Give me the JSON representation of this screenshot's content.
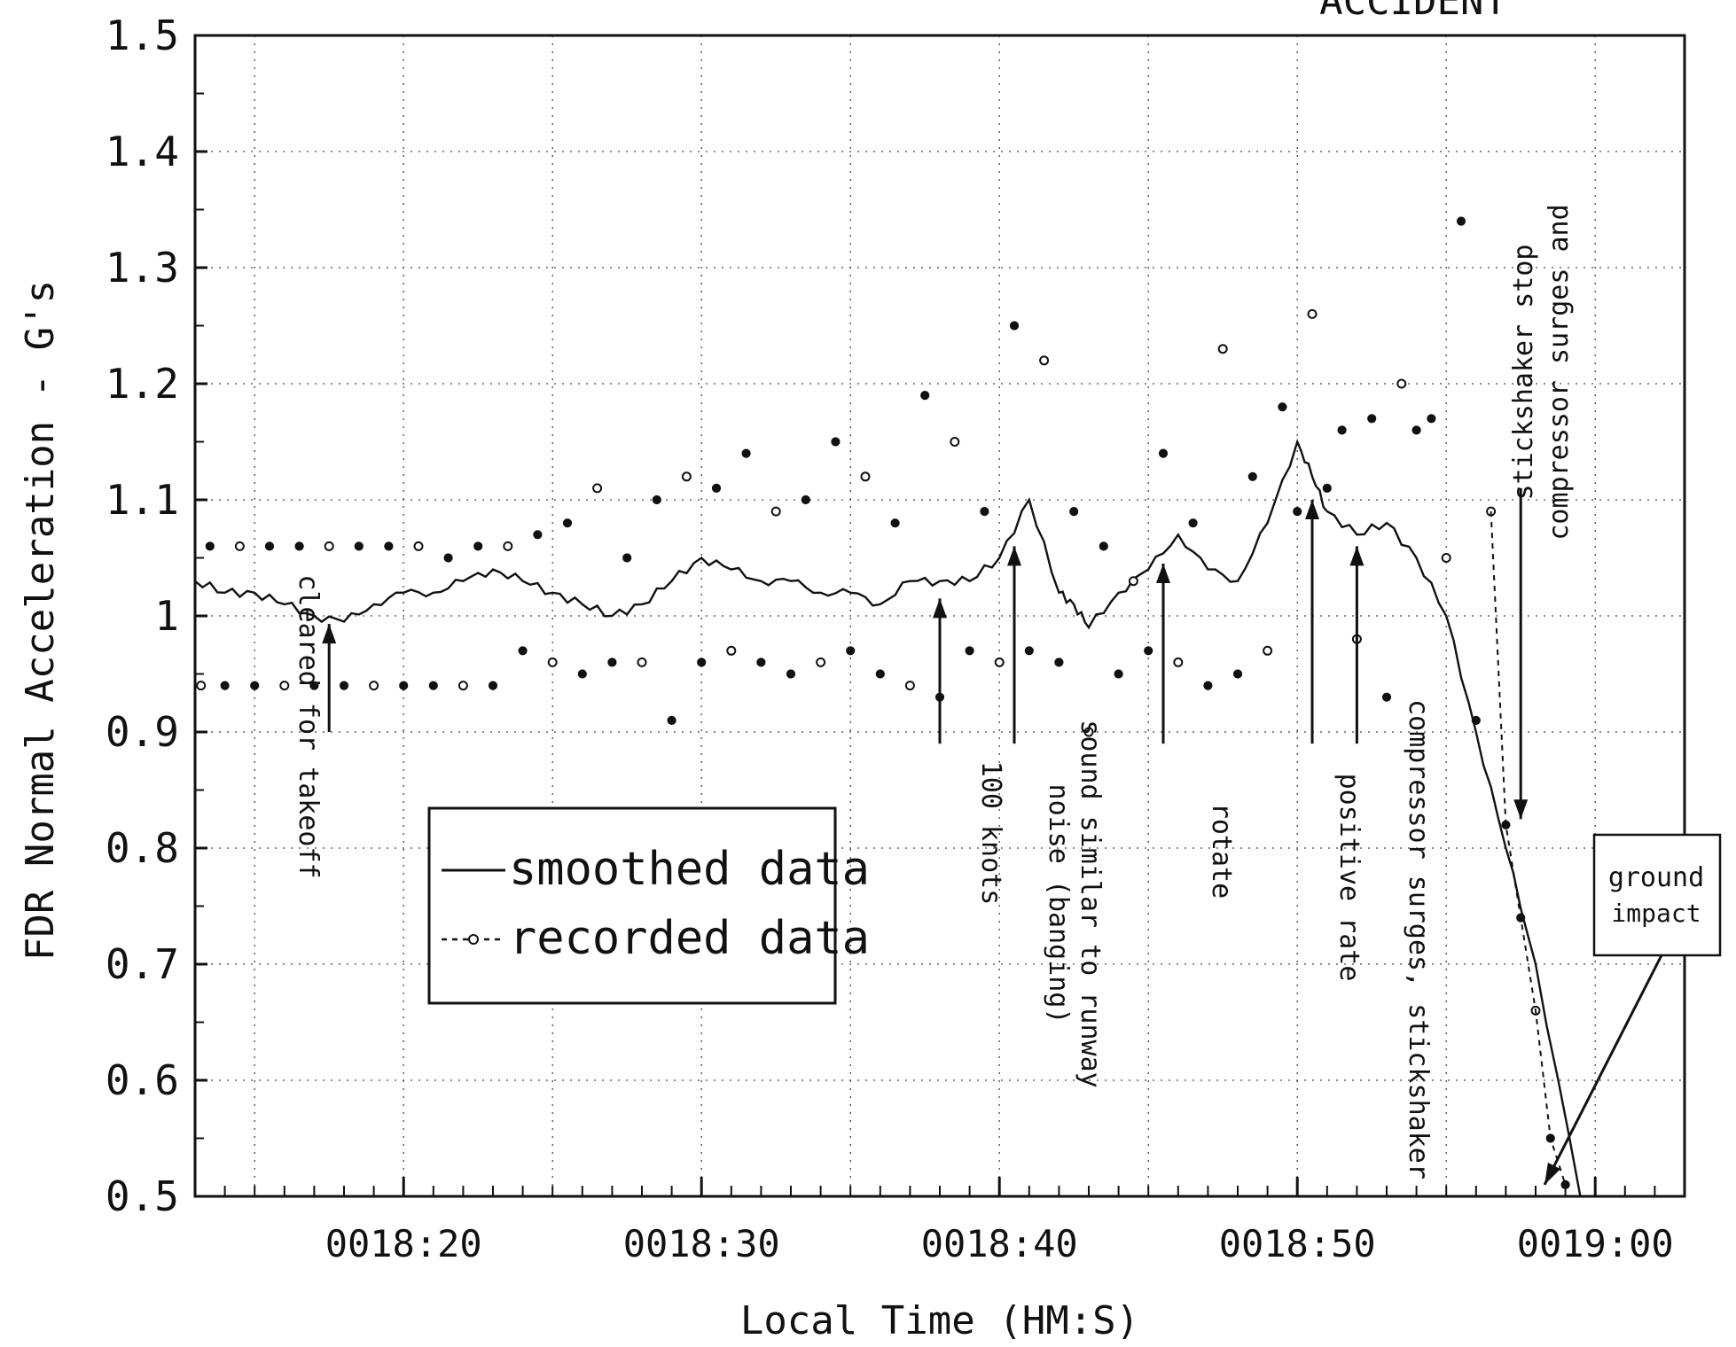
{
  "chart_data": {
    "type": "scatter",
    "partial_title": "ACCIDENT",
    "xlabel": "Local Time (HM:S)",
    "ylabel": "FDR Normal Acceleration - G's",
    "ylim": [
      0.5,
      1.5
    ],
    "xlim": [
      "0018:13",
      "0019:03"
    ],
    "grid": true,
    "x_ticks": [
      "0018:20",
      "0018:30",
      "0018:40",
      "0018:50",
      "0019:00"
    ],
    "y_ticks": [
      "0.5",
      "0.6",
      "0.7",
      "0.8",
      "0.9",
      "1",
      "1.1",
      "1.2",
      "1.3",
      "1.4",
      "1.5"
    ],
    "legend": {
      "placement": "lower-left",
      "entries": [
        "smoothed data",
        "recorded data"
      ]
    },
    "series": [
      {
        "name": "smoothed data",
        "style": "solid line",
        "x": [
          "0018:13.0",
          "0018:14.0",
          "0018:15.0",
          "0018:16.0",
          "0018:17.0",
          "0018:18.0",
          "0018:19.0",
          "0018:20.0",
          "0018:21.0",
          "0018:22.0",
          "0018:23.0",
          "0018:24.0",
          "0018:25.0",
          "0018:26.0",
          "0018:27.0",
          "0018:28.0",
          "0018:29.0",
          "0018:30.0",
          "0018:31.0",
          "0018:32.0",
          "0018:33.0",
          "0018:34.0",
          "0018:35.0",
          "0018:36.0",
          "0018:37.0",
          "0018:38.0",
          "0018:39.0",
          "0018:40.0",
          "0018:41.0",
          "0018:42.0",
          "0018:42.5",
          "0018:43.0",
          "0018:44.0",
          "0018:45.0",
          "0018:46.0",
          "0018:47.0",
          "0018:48.0",
          "0018:49.0",
          "0018:50.0",
          "0018:50.5",
          "0018:51.0",
          "0018:52.0",
          "0018:53.0",
          "0018:54.0",
          "0018:55.0",
          "0018:56.0",
          "0018:57.0",
          "0018:58.0",
          "0018:59.5"
        ],
        "y": [
          1.03,
          1.02,
          1.02,
          1.01,
          1.0,
          0.995,
          1.01,
          1.02,
          1.02,
          1.03,
          1.04,
          1.03,
          1.02,
          1.01,
          1.0,
          1.01,
          1.03,
          1.05,
          1.04,
          1.03,
          1.03,
          1.02,
          1.02,
          1.01,
          1.03,
          1.03,
          1.03,
          1.05,
          1.1,
          1.02,
          1.01,
          0.99,
          1.02,
          1.04,
          1.07,
          1.04,
          1.03,
          1.08,
          1.15,
          1.12,
          1.09,
          1.07,
          1.08,
          1.05,
          1.0,
          0.9,
          0.8,
          0.7,
          0.5
        ]
      },
      {
        "name": "recorded data",
        "style": "markers",
        "x": [
          "0018:13.2",
          "0018:13.5",
          "0018:14.0",
          "0018:14.5",
          "0018:15.0",
          "0018:15.5",
          "0018:16.0",
          "0018:16.5",
          "0018:17.0",
          "0018:17.5",
          "0018:18.0",
          "0018:18.5",
          "0018:19.0",
          "0018:19.5",
          "0018:20.0",
          "0018:20.5",
          "0018:21.0",
          "0018:21.5",
          "0018:22.0",
          "0018:22.5",
          "0018:23.0",
          "0018:23.5",
          "0018:24.0",
          "0018:24.5",
          "0018:25.0",
          "0018:25.5",
          "0018:26.0",
          "0018:26.5",
          "0018:27.0",
          "0018:27.5",
          "0018:28.0",
          "0018:28.5",
          "0018:29.0",
          "0018:29.5",
          "0018:30.0",
          "0018:30.5",
          "0018:31.0",
          "0018:31.5",
          "0018:32.0",
          "0018:32.5",
          "0018:33.0",
          "0018:33.5",
          "0018:34.0",
          "0018:34.5",
          "0018:35.0",
          "0018:35.5",
          "0018:36.0",
          "0018:36.5",
          "0018:37.0",
          "0018:37.5",
          "0018:38.0",
          "0018:38.5",
          "0018:39.0",
          "0018:39.5",
          "0018:40.0",
          "0018:40.5",
          "0018:41.0",
          "0018:41.5",
          "0018:42.0",
          "0018:42.5",
          "0018:43.0",
          "0018:43.5",
          "0018:44.0",
          "0018:44.5",
          "0018:45.0",
          "0018:45.5",
          "0018:46.0",
          "0018:46.5",
          "0018:47.0",
          "0018:47.5",
          "0018:48.0",
          "0018:48.5",
          "0018:49.0",
          "0018:49.5",
          "0018:50.0",
          "0018:50.5",
          "0018:51.0",
          "0018:51.5",
          "0018:52.0",
          "0018:52.5",
          "0018:53.0",
          "0018:53.5",
          "0018:54.0",
          "0018:54.5",
          "0018:55.0",
          "0018:55.5",
          "0018:56.0",
          "0018:56.5",
          "0018:57.0",
          "0018:57.5",
          "0018:58.0",
          "0018:58.5",
          "0018:59.0"
        ],
        "y": [
          0.94,
          1.06,
          0.94,
          1.06,
          0.94,
          1.06,
          0.94,
          1.06,
          0.94,
          1.06,
          0.94,
          1.06,
          0.94,
          1.06,
          0.94,
          1.06,
          0.94,
          1.05,
          0.94,
          1.06,
          0.94,
          1.06,
          0.97,
          1.07,
          0.96,
          1.08,
          0.95,
          1.11,
          0.96,
          1.05,
          0.96,
          1.1,
          0.91,
          1.12,
          0.96,
          1.11,
          0.97,
          1.14,
          0.96,
          1.09,
          0.95,
          1.1,
          0.96,
          1.15,
          0.97,
          1.12,
          0.95,
          1.08,
          0.94,
          1.19,
          0.93,
          1.15,
          0.97,
          1.09,
          0.96,
          1.25,
          0.97,
          1.22,
          0.96,
          1.09,
          0.9,
          1.06,
          0.95,
          1.03,
          0.97,
          1.14,
          0.96,
          1.08,
          0.94,
          1.23,
          0.95,
          1.12,
          0.97,
          1.18,
          1.09,
          1.26,
          1.11,
          1.16,
          0.98,
          1.17,
          0.93,
          1.2,
          1.16,
          1.17,
          1.05,
          1.34,
          0.91,
          1.09,
          0.82,
          0.74,
          0.66,
          0.55,
          0.51
        ]
      }
    ],
    "annotations": [
      {
        "label": "cleared for takeoff",
        "x": "0018:17.5"
      },
      {
        "label": "100 knots",
        "x": "0018:38.0"
      },
      {
        "label": "sound similar to runway noise (banging)",
        "x": "0018:40.5"
      },
      {
        "label": "rotate",
        "x": "0018:45.5"
      },
      {
        "label": "positive rate",
        "x": "0018:50.5"
      },
      {
        "label": "compressor surges, stickshaker",
        "x": "0018:52.0"
      },
      {
        "label": "compressor surges and stickshaker stop",
        "x": "0018:57.0"
      },
      {
        "label": "ground impact",
        "x": "0018:57.5"
      }
    ]
  }
}
